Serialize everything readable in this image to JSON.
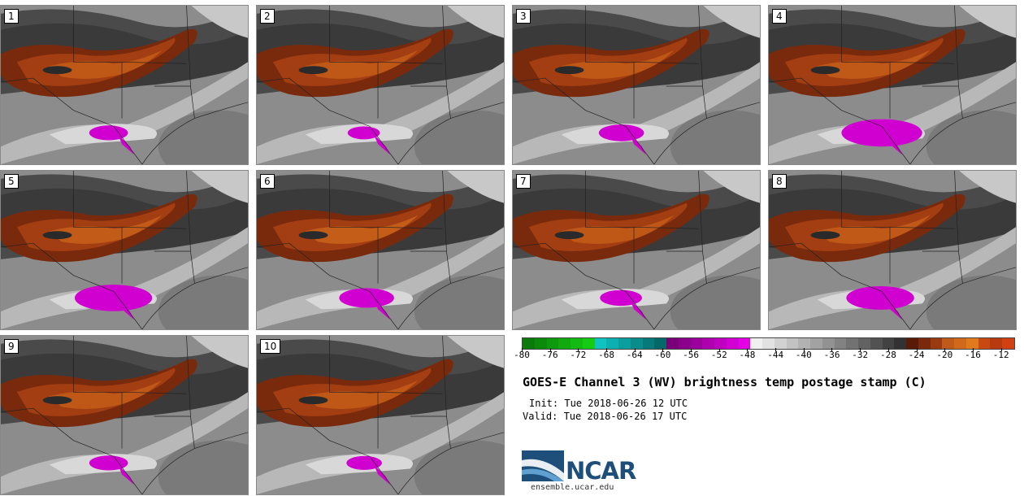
{
  "panels": [
    {
      "label": "1",
      "dry_pocket": 0.25,
      "purple_area": 0.35
    },
    {
      "label": "2",
      "dry_pocket": 0.25,
      "purple_area": 0.25
    },
    {
      "label": "3",
      "dry_pocket": 0.25,
      "purple_area": 0.45
    },
    {
      "label": "4",
      "dry_pocket": 0.3,
      "purple_area": 1.0
    },
    {
      "label": "5",
      "dry_pocket": 0.35,
      "purple_area": 0.95
    },
    {
      "label": "6",
      "dry_pocket": 0.4,
      "purple_area": 0.6
    },
    {
      "label": "7",
      "dry_pocket": 0.25,
      "purple_area": 0.4
    },
    {
      "label": "8",
      "dry_pocket": 0.3,
      "purple_area": 0.8
    },
    {
      "label": "9",
      "dry_pocket": 0.25,
      "purple_area": 0.35
    },
    {
      "label": "10",
      "dry_pocket": 0.25,
      "purple_area": 0.3
    }
  ],
  "colorbar": {
    "min": -80,
    "max": -10,
    "step": 2,
    "tick_labels": [
      "-80",
      "-76",
      "-72",
      "-68",
      "-64",
      "-60",
      "-56",
      "-52",
      "-48",
      "-44",
      "-40",
      "-36",
      "-32",
      "-28",
      "-24",
      "-20",
      "-16",
      "-12"
    ],
    "colors": [
      "#0a7a0a",
      "#0b8a0b",
      "#0e9a0e",
      "#10aa10",
      "#12bb12",
      "#14cc14",
      "#0fc3c3",
      "#0db0b0",
      "#0a9e9e",
      "#088c8c",
      "#067a7a",
      "#056868",
      "#7a007a",
      "#8a008a",
      "#9c009c",
      "#ae00ae",
      "#c000c0",
      "#d200d2",
      "#e400e4",
      "#f0f0f0",
      "#e2e2e2",
      "#d2d2d2",
      "#c2c2c2",
      "#b2b2b2",
      "#a2a2a2",
      "#929292",
      "#828282",
      "#727272",
      "#626262",
      "#525252",
      "#424242",
      "#323232",
      "#5a1a08",
      "#7a2a0c",
      "#9a3a10",
      "#c05a18",
      "#d06a1a",
      "#e07a1c",
      "#c84a12",
      "#b83a0e",
      "#d04010"
    ]
  },
  "title": "GOES-E Channel 3 (WV) brightness temp postage stamp (C)",
  "init": "Init: Tue 2018-06-26 12 UTC",
  "valid": "Valid: Tue 2018-06-26 17 UTC",
  "logo": {
    "name": "NCAR",
    "url": "ensemble.ucar.edu",
    "brand_color": "#1d4f7a"
  }
}
